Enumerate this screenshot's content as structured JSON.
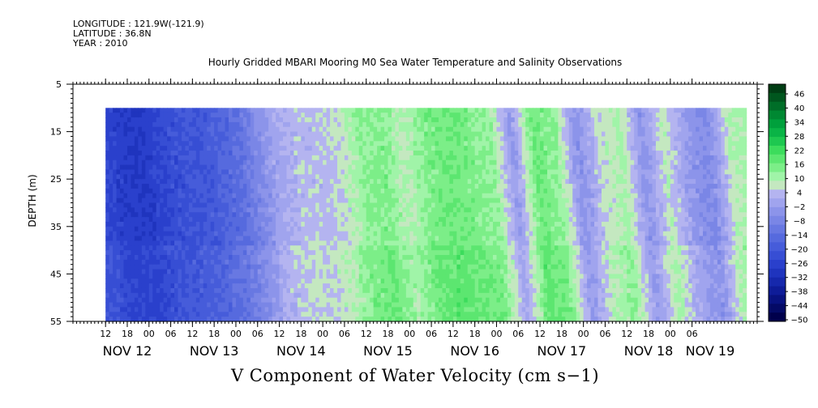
{
  "header": {
    "longitude": "LONGITUDE : 121.9W(-121.9)",
    "latitude": "LATITUDE : 36.8N",
    "year": "YEAR : 2010",
    "plot_title": "Hourly Gridded MBARI Mooring M0 Sea Water Temperature and Salinity Observations"
  },
  "bottom_title": "V Component of Water Velocity (cm s−1)",
  "chart_data": {
    "type": "heatmap",
    "title": "Hourly Gridded MBARI Mooring M0 Sea Water Temperature and Salinity Observations",
    "xlabel": "",
    "ylabel": "DEPTH (m)",
    "variable": "V Component of Water Velocity (cm s−1)",
    "ylim": [
      55,
      5
    ],
    "xlim_hours_from_nov12_00": [
      -21,
      168
    ],
    "data_start_hour": -12,
    "data_end_hour": 165,
    "data_top_depth": 10,
    "yticks": [
      5,
      15,
      25,
      35,
      45,
      55
    ],
    "hour_ticks": [
      {
        "h": -12,
        "label": "12"
      },
      {
        "h": -6,
        "label": "18"
      },
      {
        "h": 0,
        "label": "00"
      },
      {
        "h": 6,
        "label": "06"
      },
      {
        "h": 12,
        "label": "12"
      },
      {
        "h": 18,
        "label": "18"
      },
      {
        "h": 24,
        "label": "00"
      },
      {
        "h": 30,
        "label": "06"
      },
      {
        "h": 36,
        "label": "12"
      },
      {
        "h": 42,
        "label": "18"
      },
      {
        "h": 48,
        "label": "00"
      },
      {
        "h": 54,
        "label": "06"
      },
      {
        "h": 60,
        "label": "12"
      },
      {
        "h": 66,
        "label": "18"
      },
      {
        "h": 72,
        "label": "00"
      },
      {
        "h": 78,
        "label": "06"
      },
      {
        "h": 84,
        "label": "12"
      },
      {
        "h": 90,
        "label": "18"
      },
      {
        "h": 96,
        "label": "00"
      },
      {
        "h": 102,
        "label": "06"
      },
      {
        "h": 108,
        "label": "12"
      },
      {
        "h": 114,
        "label": "18"
      },
      {
        "h": 120,
        "label": "00"
      },
      {
        "h": 126,
        "label": "06"
      },
      {
        "h": 132,
        "label": "12"
      },
      {
        "h": 138,
        "label": "18"
      },
      {
        "h": 144,
        "label": "00"
      },
      {
        "h": 150,
        "label": "06"
      }
    ],
    "day_labels": [
      {
        "h": -6,
        "label": "NOV 12"
      },
      {
        "h": 18,
        "label": "NOV 13"
      },
      {
        "h": 42,
        "label": "NOV 14"
      },
      {
        "h": 66,
        "label": "NOV 15"
      },
      {
        "h": 90,
        "label": "NOV 16"
      },
      {
        "h": 114,
        "label": "NOV 17"
      },
      {
        "h": 138,
        "label": "NOV 18"
      },
      {
        "h": 155,
        "label": "NOV 19"
      }
    ],
    "colorbar": {
      "levels": [
        46,
        40,
        34,
        28,
        22,
        16,
        10,
        4,
        -2,
        -8,
        -14,
        -20,
        -26,
        -32,
        -38,
        -44,
        -50
      ],
      "colors": [
        "#003d14",
        "#00561e",
        "#006e28",
        "#008832",
        "#00a03c",
        "#0ab446",
        "#1ec850",
        "#3cdc5c",
        "#5ce670",
        "#7cee88",
        "#a0f4a8",
        "#c4e8c0",
        "#b4b4f0",
        "#a0a4ee",
        "#8c94ea",
        "#7a86e6",
        "#6878e2",
        "#566ade",
        "#465cda",
        "#374ed4",
        "#2a40cc",
        "#1f34be",
        "#1628ac",
        "#0e1c98",
        "#081280",
        "#040a66",
        "#00004c"
      ]
    },
    "v_profile_by_hour": [
      [
        -12,
        -24
      ],
      [
        -6,
        -28
      ],
      [
        0,
        -28
      ],
      [
        6,
        -24
      ],
      [
        12,
        -22
      ],
      [
        18,
        -20
      ],
      [
        24,
        -16
      ],
      [
        30,
        -10
      ],
      [
        36,
        -2
      ],
      [
        42,
        2
      ],
      [
        48,
        2
      ],
      [
        54,
        4
      ],
      [
        60,
        10
      ],
      [
        66,
        12
      ],
      [
        72,
        6
      ],
      [
        78,
        12
      ],
      [
        84,
        14
      ],
      [
        90,
        12
      ],
      [
        96,
        10
      ],
      [
        102,
        -4
      ],
      [
        108,
        14
      ],
      [
        114,
        10
      ],
      [
        120,
        -6
      ],
      [
        126,
        4
      ],
      [
        132,
        8
      ],
      [
        138,
        -6
      ],
      [
        144,
        6
      ],
      [
        150,
        -4
      ],
      [
        156,
        -8
      ],
      [
        162,
        6
      ],
      [
        165,
        8
      ]
    ]
  }
}
